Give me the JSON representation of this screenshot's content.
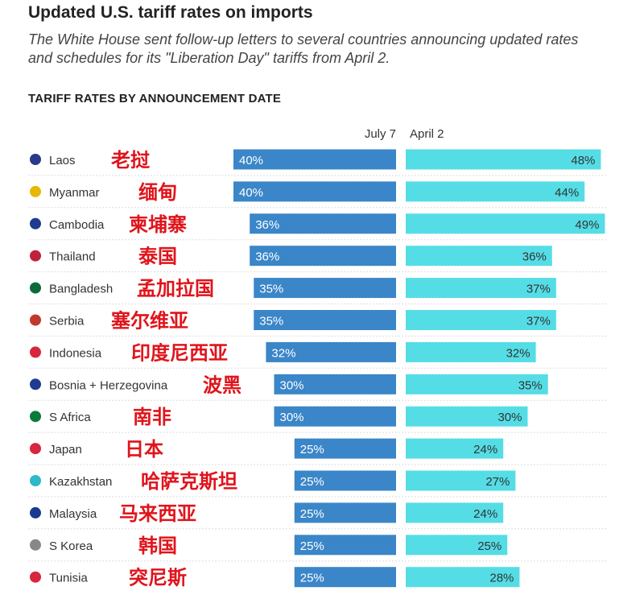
{
  "title": "Updated U.S. tariff rates on imports",
  "subtitle": "The White House sent follow-up letters to several countries announcing updated rates and schedules for its \"Liberation Day\" tariffs from April 2.",
  "section_label": "TARIFF RATES BY ANNOUNCEMENT DATE",
  "chart_data": {
    "type": "bar",
    "orientation": "horizontal-diverging",
    "categories": [
      "Laos",
      "Myanmar",
      "Cambodia",
      "Thailand",
      "Bangladesh",
      "Serbia",
      "Indonesia",
      "Bosnia + Herzegovina",
      "S Africa",
      "Japan",
      "Kazakhstan",
      "Malaysia",
      "S Korea",
      "Tunisia"
    ],
    "annotations_zh": [
      "老挝",
      "缅甸",
      "柬埔寨",
      "泰国",
      "孟加拉国",
      "塞尔维亚",
      "印度尼西亚",
      "波黑",
      "南非",
      "日本",
      "哈萨克斯坦",
      "马来西亚",
      "韩国",
      "突尼斯"
    ],
    "series": [
      {
        "name": "July 7",
        "values": [
          40,
          40,
          36,
          36,
          35,
          35,
          32,
          30,
          30,
          25,
          25,
          25,
          25,
          25
        ],
        "color": "#3a86c8"
      },
      {
        "name": "April 2",
        "values": [
          48,
          44,
          49,
          36,
          37,
          37,
          32,
          35,
          30,
          24,
          27,
          24,
          25,
          28
        ],
        "color": "#55dde6"
      }
    ],
    "value_suffix": "%",
    "annotation_color": "#e0141b"
  }
}
